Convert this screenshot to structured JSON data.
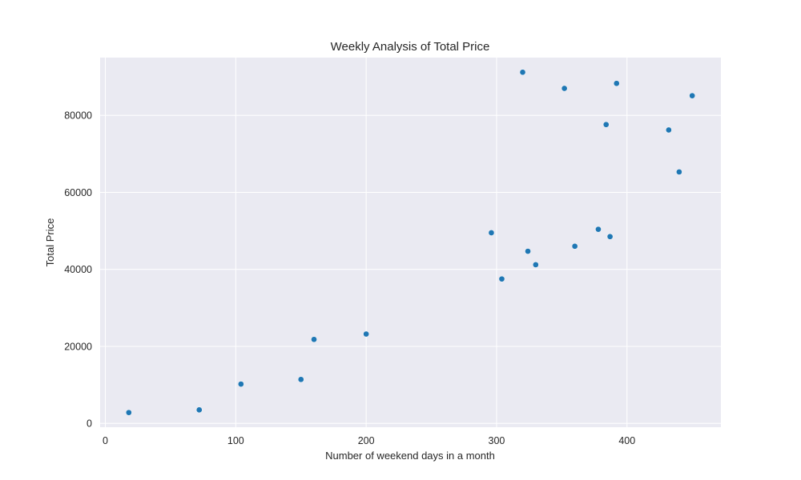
{
  "chart_data": {
    "type": "scatter",
    "title": "Weekly Analysis of Total Price",
    "xlabel": "Number of weekend days in a month",
    "ylabel": "Total Price",
    "xlim": [
      -4,
      472
    ],
    "ylim": [
      -1000,
      95000
    ],
    "xticks": [
      0,
      100,
      200,
      300,
      400
    ],
    "yticks": [
      0,
      20000,
      40000,
      60000,
      80000
    ],
    "grid": true,
    "colors": {
      "background": "#eaeaf2",
      "grid": "#ffffff",
      "point": "#1f77b4"
    },
    "points": [
      {
        "x": 18,
        "y": 2800
      },
      {
        "x": 72,
        "y": 3500
      },
      {
        "x": 104,
        "y": 10200
      },
      {
        "x": 150,
        "y": 11400
      },
      {
        "x": 160,
        "y": 21800
      },
      {
        "x": 200,
        "y": 23200
      },
      {
        "x": 296,
        "y": 49500
      },
      {
        "x": 304,
        "y": 37500
      },
      {
        "x": 320,
        "y": 91200
      },
      {
        "x": 324,
        "y": 44700
      },
      {
        "x": 330,
        "y": 41200
      },
      {
        "x": 352,
        "y": 87000
      },
      {
        "x": 360,
        "y": 46000
      },
      {
        "x": 378,
        "y": 50400
      },
      {
        "x": 384,
        "y": 77600
      },
      {
        "x": 387,
        "y": 48500
      },
      {
        "x": 392,
        "y": 88300
      },
      {
        "x": 432,
        "y": 76200
      },
      {
        "x": 440,
        "y": 65300
      },
      {
        "x": 450,
        "y": 85100
      }
    ]
  }
}
